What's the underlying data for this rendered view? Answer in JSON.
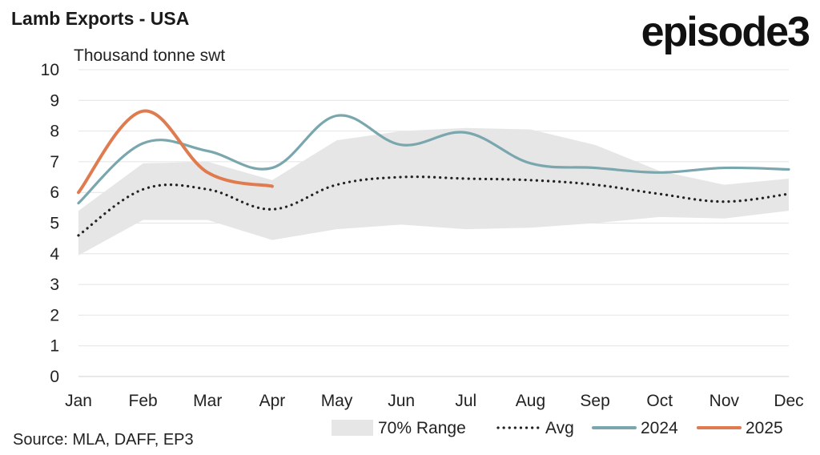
{
  "header": {
    "title": "Lamb Exports - USA",
    "logo": "episode3"
  },
  "footer": {
    "source": "Source: MLA, DAFF, EP3"
  },
  "chart_data": {
    "type": "line",
    "title": "Lamb Exports - USA",
    "ylabel": "Thousand tonne swt",
    "xlabel": "",
    "categories": [
      "Jan",
      "Feb",
      "Mar",
      "Apr",
      "May",
      "Jun",
      "Jul",
      "Aug",
      "Sep",
      "Oct",
      "Nov",
      "Dec"
    ],
    "ylim": [
      0,
      10
    ],
    "yticks": [
      0,
      1,
      2,
      3,
      4,
      5,
      6,
      7,
      8,
      9,
      10
    ],
    "grid": true,
    "legend_position": "bottom-right",
    "range": {
      "name": "70% Range",
      "upper": [
        5.4,
        6.95,
        7.0,
        6.4,
        7.7,
        8.0,
        8.1,
        8.05,
        7.55,
        6.7,
        6.25,
        6.45
      ],
      "lower": [
        3.95,
        5.1,
        5.1,
        4.45,
        4.8,
        4.95,
        4.8,
        4.85,
        5.0,
        5.2,
        5.15,
        5.4
      ],
      "color": "#e6e6e6"
    },
    "series": [
      {
        "name": "Avg",
        "style": "dotted",
        "color": "#222222",
        "values": [
          4.6,
          6.1,
          6.1,
          5.45,
          6.25,
          6.5,
          6.45,
          6.4,
          6.25,
          5.95,
          5.7,
          5.95
        ]
      },
      {
        "name": "2024",
        "style": "solid",
        "color": "#79a7ad",
        "values": [
          5.65,
          7.6,
          7.35,
          6.8,
          8.5,
          7.55,
          7.95,
          6.95,
          6.8,
          6.65,
          6.8,
          6.75
        ]
      },
      {
        "name": "2025",
        "style": "solid",
        "color": "#e07b4f",
        "values": [
          6.0,
          8.65,
          6.65,
          6.2
        ]
      }
    ]
  }
}
